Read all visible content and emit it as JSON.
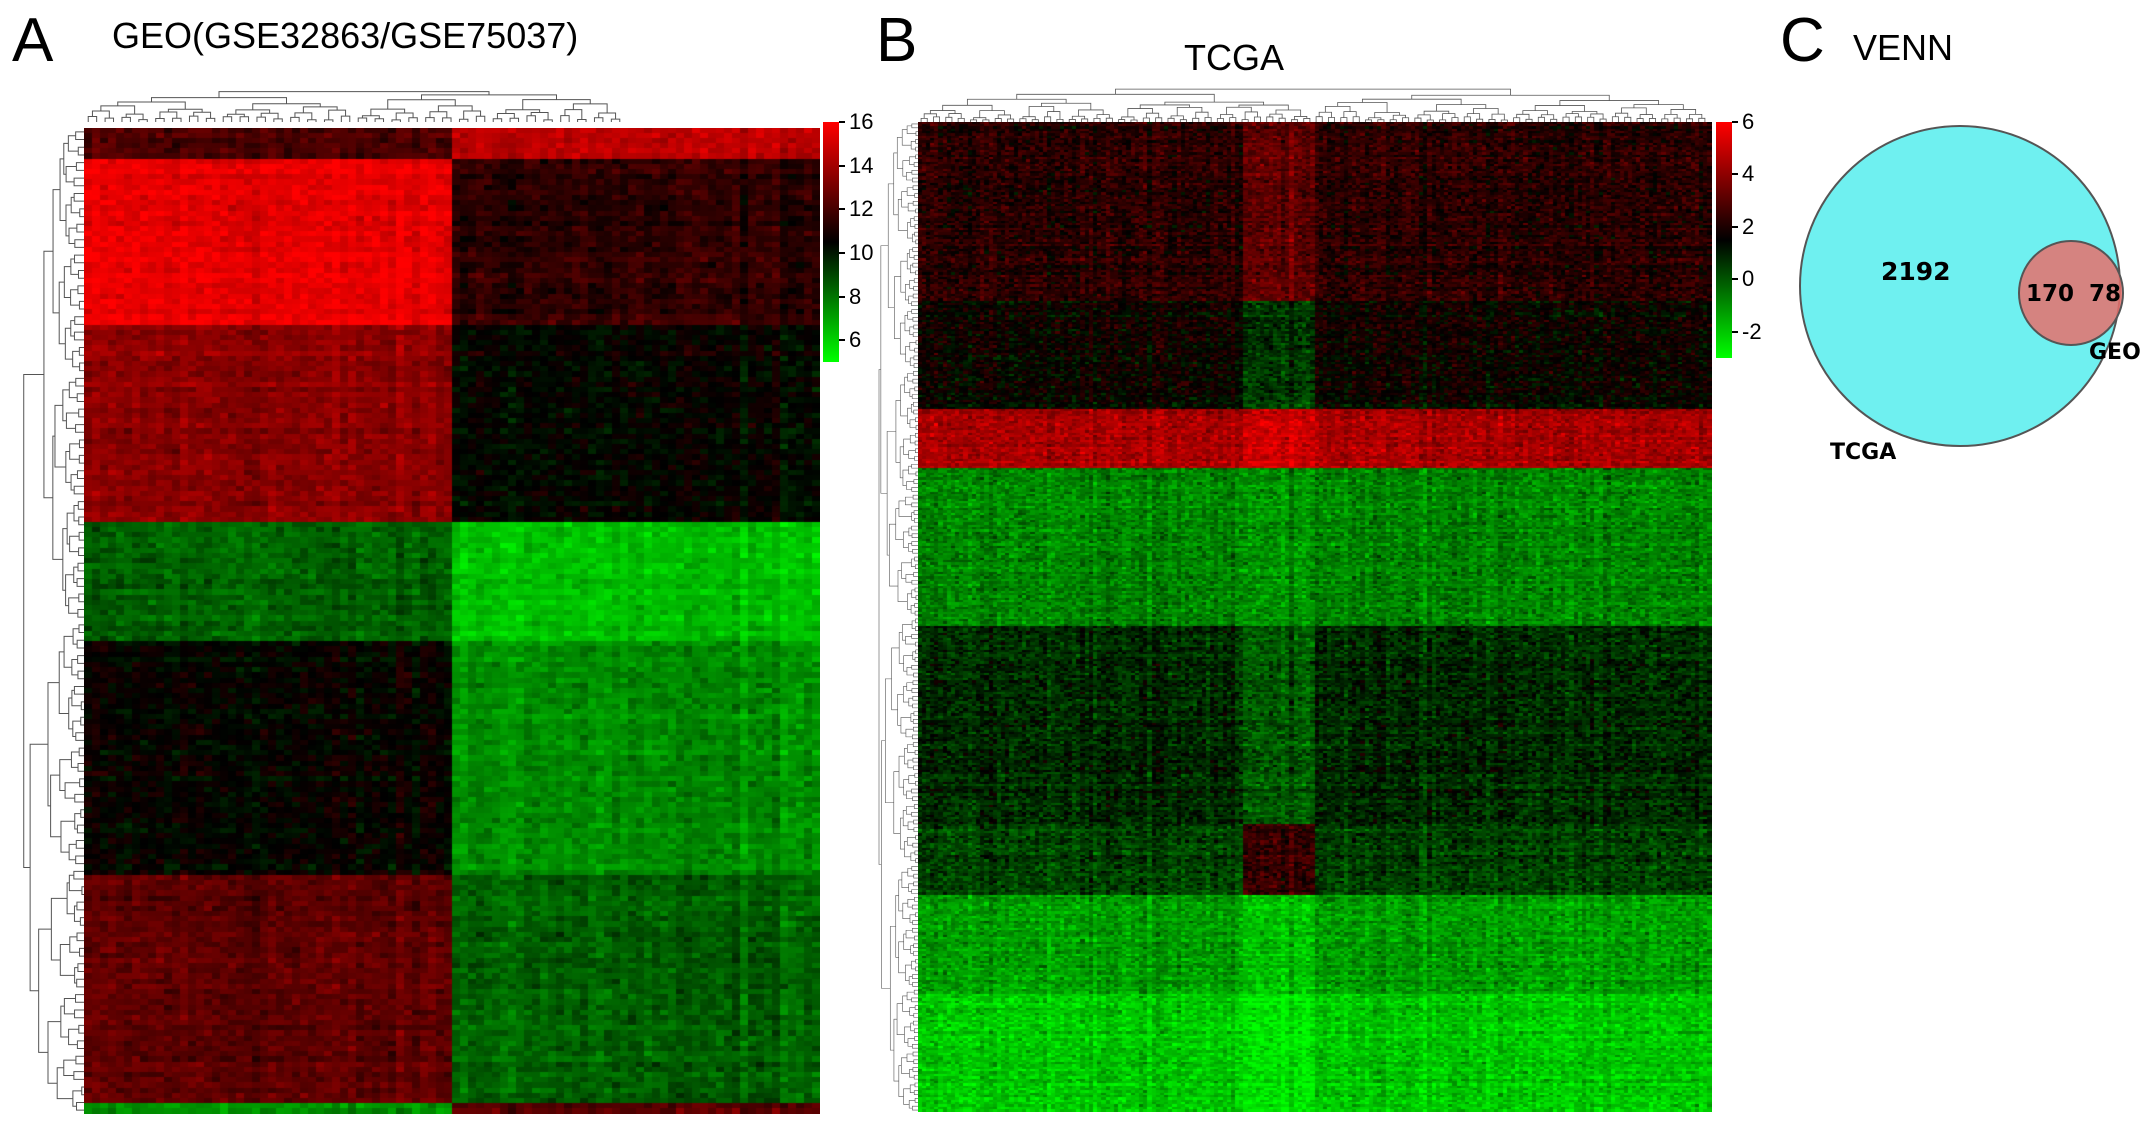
{
  "panels": {
    "a": {
      "letter": "A",
      "title": "GEO(GSE32863/GSE75037)"
    },
    "b": {
      "letter": "B",
      "title": "TCGA"
    },
    "c": {
      "letter": "C",
      "title": "VENN"
    }
  },
  "colors": {
    "high": "#ff0000",
    "mid": "#000000",
    "low": "#00ff00",
    "venn_tcga": "#6ff0f0",
    "venn_geo": "#e8706c"
  },
  "chart_data": [
    {
      "type": "heatmap",
      "title": "GEO(GSE32863/GSE75037)",
      "colorbar": {
        "ticks": [
          16,
          14,
          12,
          10,
          8,
          6
        ],
        "range": [
          5,
          16
        ]
      },
      "column_groups": [
        {
          "fraction": 0.5
        },
        {
          "fraction": 0.5
        }
      ],
      "row_blocks": [
        {
          "fraction": 0.03,
          "values": [
            12,
            14.5
          ]
        },
        {
          "fraction": 0.17,
          "values": [
            15.5,
            11.5
          ]
        },
        {
          "fraction": 0.2,
          "values": [
            13.5,
            10.5
          ]
        },
        {
          "fraction": 0.12,
          "values": [
            8.5,
            6.5
          ]
        },
        {
          "fraction": 0.24,
          "values": [
            10.5,
            7.5
          ]
        },
        {
          "fraction": 0.23,
          "values": [
            12.5,
            8.5
          ]
        },
        {
          "fraction": 0.07,
          "values": [
            7.5,
            12.5
          ]
        },
        {
          "fraction": 0.12,
          "values": [
            6.5,
            11.5
          ]
        }
      ]
    },
    {
      "type": "heatmap",
      "title": "TCGA",
      "colorbar": {
        "ticks": [
          6,
          4,
          2,
          0,
          -2
        ],
        "range": [
          -3,
          6
        ]
      },
      "column_groups": [
        {
          "fraction": 0.41
        },
        {
          "fraction": 0.09
        },
        {
          "fraction": 0.5
        }
      ],
      "row_blocks": [
        {
          "fraction": 0.18,
          "values": [
            2.2,
            3.2,
            2.2
          ]
        },
        {
          "fraction": 0.11,
          "values": [
            1.6,
            0.6,
            1.6
          ]
        },
        {
          "fraction": 0.06,
          "values": [
            4.5,
            5.2,
            4.5
          ]
        },
        {
          "fraction": 0.16,
          "values": [
            -0.8,
            -1.0,
            -0.8
          ]
        },
        {
          "fraction": 0.2,
          "values": [
            0.8,
            0.0,
            0.8
          ]
        },
        {
          "fraction": 0.07,
          "values": [
            0.4,
            2.5,
            0.4
          ]
        },
        {
          "fraction": 0.1,
          "values": [
            -1.2,
            -1.8,
            -1.2
          ]
        },
        {
          "fraction": 0.12,
          "values": [
            -2.0,
            -2.5,
            -2.0
          ]
        }
      ]
    },
    {
      "type": "venn",
      "title": "VENN",
      "sets": [
        {
          "name": "TCGA",
          "only": 2192
        },
        {
          "name": "GEO",
          "only": 78
        }
      ],
      "intersection": 170
    }
  ]
}
